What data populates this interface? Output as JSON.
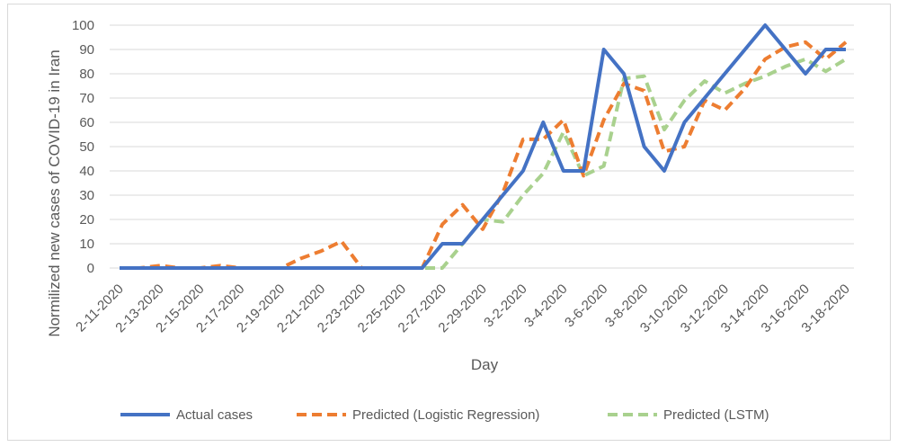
{
  "chart_data": {
    "type": "line",
    "xlabel": "Day",
    "ylabel": "Normilized new cases of COVID-19 in Iran",
    "ylim": [
      0,
      100
    ],
    "yticks": [
      0,
      10,
      20,
      30,
      40,
      50,
      60,
      70,
      80,
      90,
      100
    ],
    "grid": "horizontal",
    "legend_position": "bottom",
    "x": [
      "2-11-2020",
      "2-12-2020",
      "2-13-2020",
      "2-14-2020",
      "2-15-2020",
      "2-16-2020",
      "2-17-2020",
      "2-18-2020",
      "2-19-2020",
      "2-20-2020",
      "2-21-2020",
      "2-22-2020",
      "2-23-2020",
      "2-24-2020",
      "2-25-2020",
      "2-26-2020",
      "2-27-2020",
      "2-28-2020",
      "2-29-2020",
      "3-1-2020",
      "3-2-2020",
      "3-3-2020",
      "3-4-2020",
      "3-5-2020",
      "3-6-2020",
      "3-7-2020",
      "3-8-2020",
      "3-9-2020",
      "3-10-2020",
      "3-11-2020",
      "3-12-2020",
      "3-13-2020",
      "3-14-2020",
      "3-15-2020",
      "3-16-2020",
      "3-17-2020",
      "3-18-2020"
    ],
    "x_tick_labels": [
      "2-11-2020",
      "2-13-2020",
      "2-15-2020",
      "2-17-2020",
      "2-19-2020",
      "2-21-2020",
      "2-23-2020",
      "2-25-2020",
      "2-27-2020",
      "2-29-2020",
      "3-2-2020",
      "3-4-2020",
      "3-6-2020",
      "3-8-2020",
      "3-10-2020",
      "3-12-2020",
      "3-14-2020",
      "3-16-2020",
      "3-18-2020"
    ],
    "series": [
      {
        "name": "Actual cases",
        "color": "#4472c4",
        "dash": "solid",
        "values": [
          0,
          0,
          0,
          0,
          0,
          0,
          0,
          0,
          0,
          0,
          0,
          0,
          0,
          0,
          0,
          0,
          10,
          10,
          20,
          30,
          40,
          60,
          40,
          40,
          90,
          80,
          50,
          40,
          60,
          70,
          80,
          90,
          100,
          90,
          80,
          90,
          90
        ]
      },
      {
        "name": "Predicted (Logistic Regression)",
        "color": "#ed7d31",
        "dash": "dashed",
        "values": [
          0,
          0,
          1,
          0,
          0,
          1,
          0,
          0,
          0,
          4,
          7,
          11,
          0,
          0,
          0,
          0,
          18,
          26,
          16,
          31,
          53,
          53,
          61,
          38,
          61,
          76,
          73,
          48,
          50,
          69,
          65,
          74,
          86,
          91,
          93,
          86,
          93
        ]
      },
      {
        "name": "Predicted (LSTM)",
        "color": "#a9d18e",
        "dash": "dashed",
        "values": [
          0,
          0,
          0,
          0,
          0,
          0,
          0,
          0,
          0,
          0,
          0,
          0,
          0,
          0,
          0,
          0,
          0,
          10,
          20,
          19,
          30,
          39,
          56,
          38,
          42,
          78,
          79,
          57,
          69,
          77,
          72,
          76,
          79,
          83,
          86,
          81,
          86
        ]
      }
    ]
  }
}
